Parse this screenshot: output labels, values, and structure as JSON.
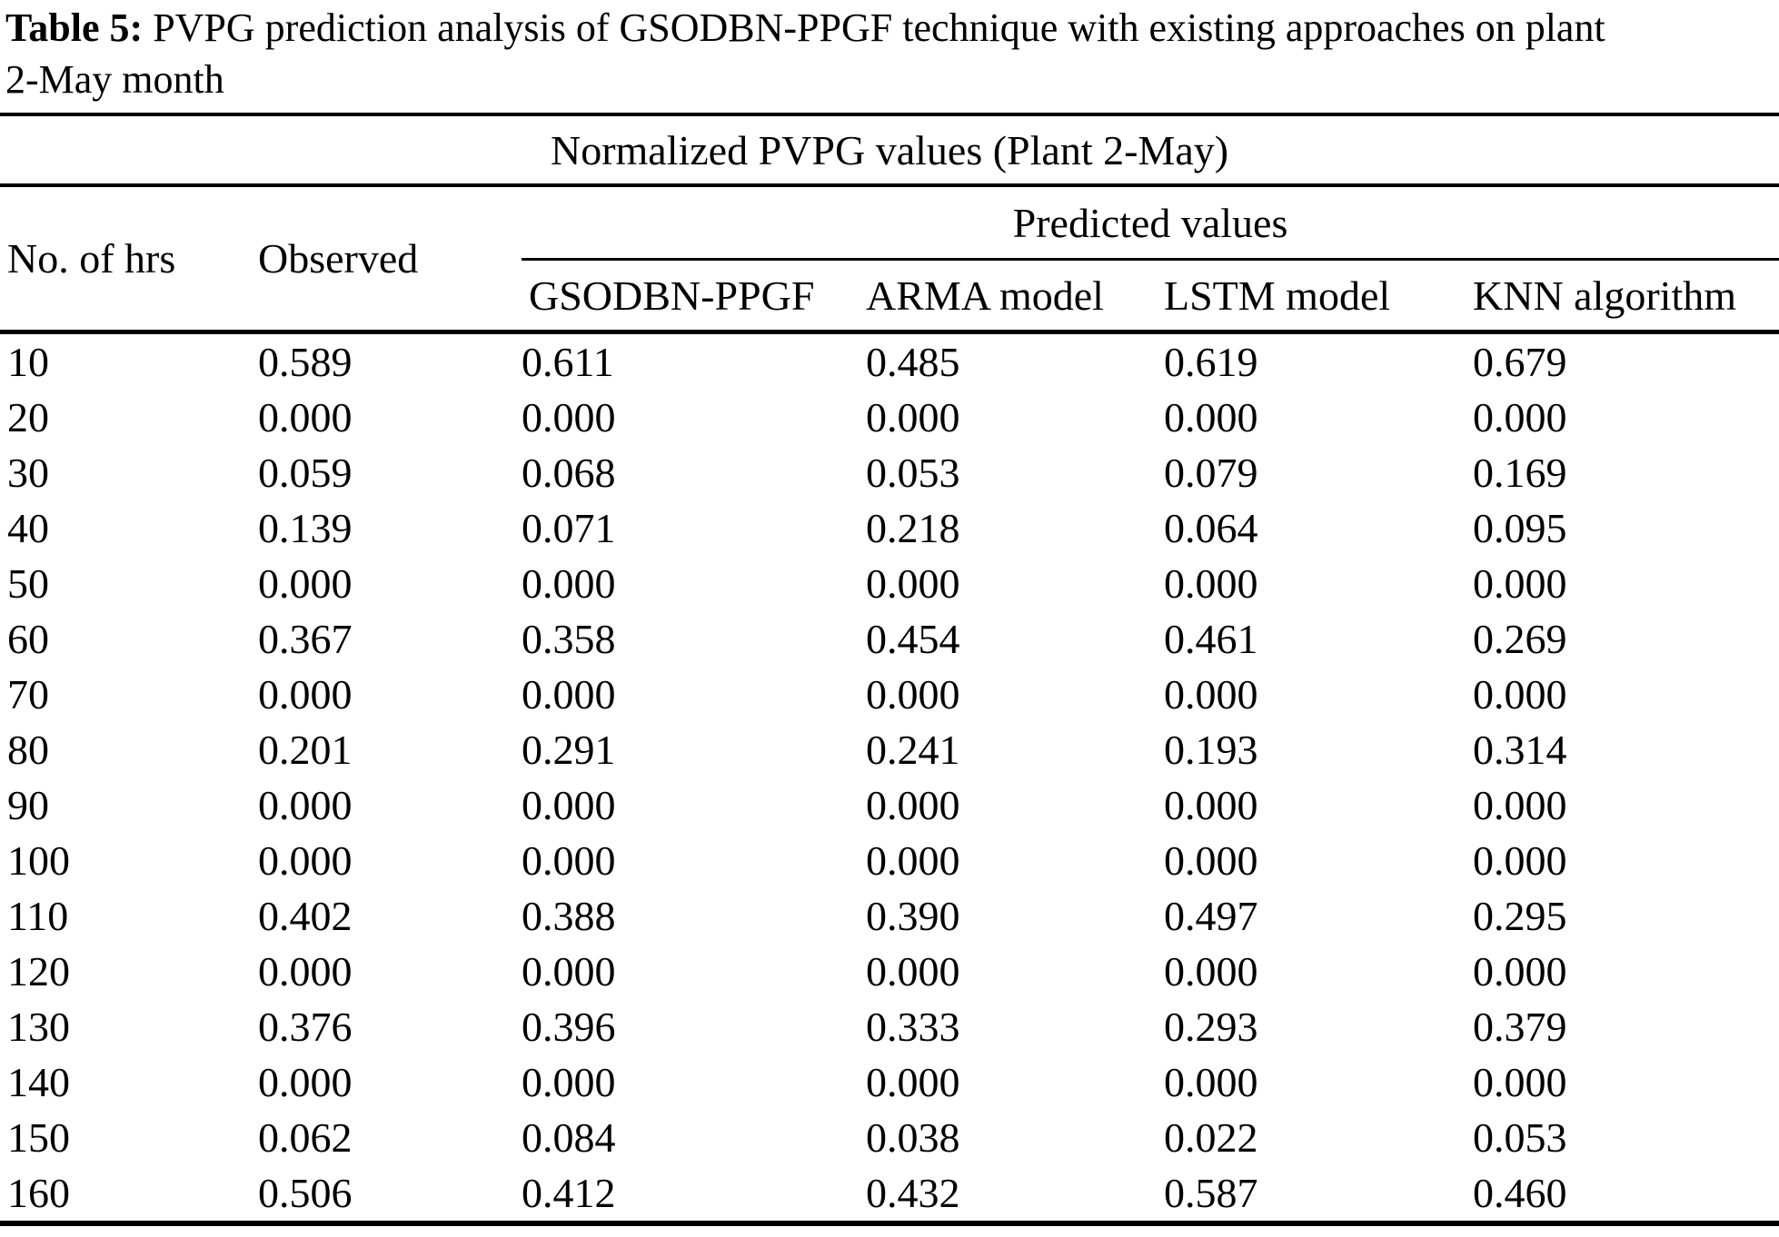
{
  "caption": {
    "label": "Table 5:",
    "line1_rest": " PVPG prediction analysis of GSODBN-PPGF technique with existing approaches on plant",
    "line2": "2-May month"
  },
  "table": {
    "group_header": "Normalized PVPG values (Plant 2-May)",
    "headers": {
      "hours": "No. of hrs",
      "observed": "Observed",
      "predicted_group": "Predicted values",
      "predicted": [
        "GSODBN-PPGF",
        "ARMA model",
        "LSTM model",
        "KNN algorithm"
      ]
    },
    "rows": [
      {
        "hrs": "10",
        "observed": "0.589",
        "predicted": [
          "0.611",
          "0.485",
          "0.619",
          "0.679"
        ]
      },
      {
        "hrs": "20",
        "observed": "0.000",
        "predicted": [
          "0.000",
          "0.000",
          "0.000",
          "0.000"
        ]
      },
      {
        "hrs": "30",
        "observed": "0.059",
        "predicted": [
          "0.068",
          "0.053",
          "0.079",
          "0.169"
        ]
      },
      {
        "hrs": "40",
        "observed": "0.139",
        "predicted": [
          "0.071",
          "0.218",
          "0.064",
          "0.095"
        ]
      },
      {
        "hrs": "50",
        "observed": "0.000",
        "predicted": [
          "0.000",
          "0.000",
          "0.000",
          "0.000"
        ]
      },
      {
        "hrs": "60",
        "observed": "0.367",
        "predicted": [
          "0.358",
          "0.454",
          "0.461",
          "0.269"
        ]
      },
      {
        "hrs": "70",
        "observed": "0.000",
        "predicted": [
          "0.000",
          "0.000",
          "0.000",
          "0.000"
        ]
      },
      {
        "hrs": "80",
        "observed": "0.201",
        "predicted": [
          "0.291",
          "0.241",
          "0.193",
          "0.314"
        ]
      },
      {
        "hrs": "90",
        "observed": "0.000",
        "predicted": [
          "0.000",
          "0.000",
          "0.000",
          "0.000"
        ]
      },
      {
        "hrs": "100",
        "observed": "0.000",
        "predicted": [
          "0.000",
          "0.000",
          "0.000",
          "0.000"
        ]
      },
      {
        "hrs": "110",
        "observed": "0.402",
        "predicted": [
          "0.388",
          "0.390",
          "0.497",
          "0.295"
        ]
      },
      {
        "hrs": "120",
        "observed": "0.000",
        "predicted": [
          "0.000",
          "0.000",
          "0.000",
          "0.000"
        ]
      },
      {
        "hrs": "130",
        "observed": "0.376",
        "predicted": [
          "0.396",
          "0.333",
          "0.293",
          "0.379"
        ]
      },
      {
        "hrs": "140",
        "observed": "0.000",
        "predicted": [
          "0.000",
          "0.000",
          "0.000",
          "0.000"
        ]
      },
      {
        "hrs": "150",
        "observed": "0.062",
        "predicted": [
          "0.084",
          "0.038",
          "0.022",
          "0.053"
        ]
      },
      {
        "hrs": "160",
        "observed": "0.506",
        "predicted": [
          "0.412",
          "0.432",
          "0.587",
          "0.460"
        ]
      }
    ]
  }
}
